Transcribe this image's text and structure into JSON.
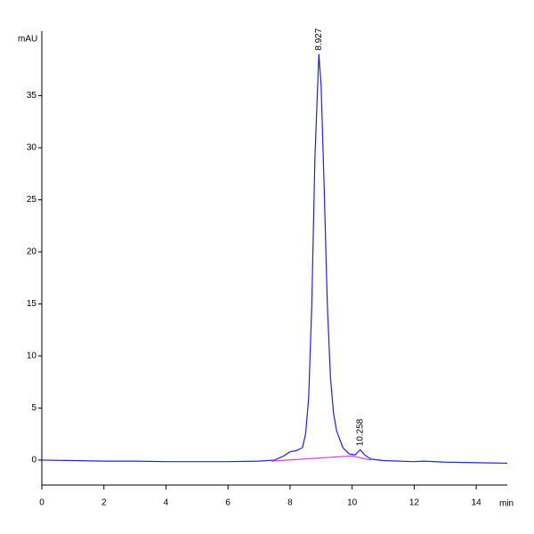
{
  "chart_data": {
    "type": "line",
    "ylabel": "mAU",
    "xlabel": "min",
    "xlim": [
      0,
      15
    ],
    "ylim": [
      -2.4,
      41.2
    ],
    "xticks": [
      0,
      2,
      4,
      6,
      8,
      10,
      12,
      14
    ],
    "yticks": [
      0,
      5,
      10,
      15,
      20,
      25,
      30,
      35
    ],
    "grid": false,
    "series": [
      {
        "color": "#2222dd",
        "x": [
          0,
          1,
          2,
          3,
          4,
          5,
          6,
          7,
          7.5,
          7.8,
          8.0,
          8.2,
          8.4,
          8.5,
          8.6,
          8.7,
          8.8,
          8.927,
          9.0,
          9.1,
          9.2,
          9.3,
          9.4,
          9.5,
          9.7,
          9.9,
          10.1,
          10.258,
          10.4,
          10.6,
          11,
          12,
          12.3,
          13,
          14,
          15
        ],
        "values": [
          0,
          -0.05,
          -0.1,
          -0.1,
          -0.15,
          -0.15,
          -0.15,
          -0.1,
          0,
          0.4,
          0.8,
          0.9,
          1.2,
          2.5,
          6,
          15,
          29,
          39,
          36,
          26,
          15,
          8,
          4.5,
          2.8,
          1.2,
          0.6,
          0.5,
          1.0,
          0.5,
          0.1,
          -0.05,
          -0.15,
          -0.1,
          -0.2,
          -0.25,
          -0.3
        ]
      },
      {
        "color": "#e040e0",
        "x": [
          7.4,
          10.0,
          10.6
        ],
        "values": [
          -0.1,
          0.4,
          0.0
        ]
      }
    ],
    "annotations": [
      {
        "text": "8.927",
        "x": 8.927,
        "y": 39
      },
      {
        "text": "10.258",
        "x": 10.258,
        "y": 1.0
      }
    ]
  }
}
